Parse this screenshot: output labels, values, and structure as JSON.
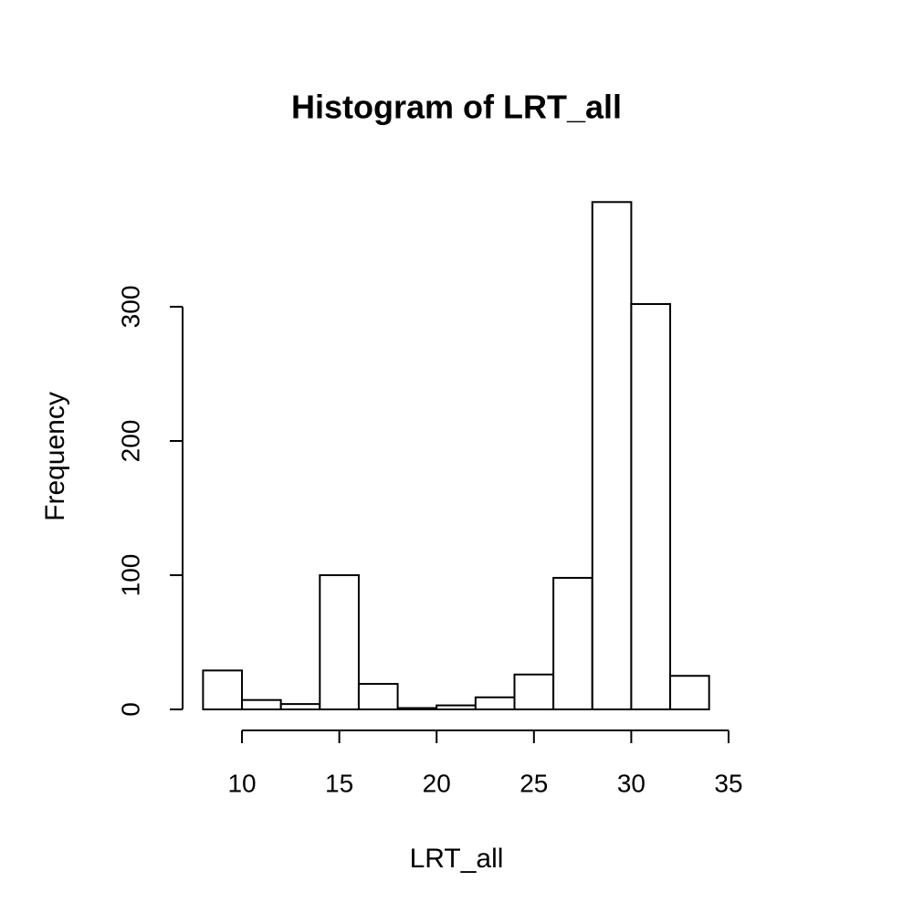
{
  "chart_data": {
    "type": "histogram",
    "title": "Histogram of LRT_all",
    "x_label": "LRT_all",
    "y_label": "Frequency",
    "bins": [
      8,
      10,
      12,
      14,
      16,
      18,
      20,
      22,
      24,
      26,
      28,
      30,
      32,
      34
    ],
    "values": [
      29,
      7,
      4,
      100,
      19,
      1,
      3,
      9,
      26,
      98,
      378,
      302,
      25
    ],
    "color": "#ffffff",
    "xlim": [
      8,
      35
    ],
    "ylim": [
      0,
      378
    ],
    "xticks": [
      10,
      15,
      20,
      25,
      30,
      35
    ],
    "yticks": [
      0,
      100,
      200,
      300
    ]
  }
}
